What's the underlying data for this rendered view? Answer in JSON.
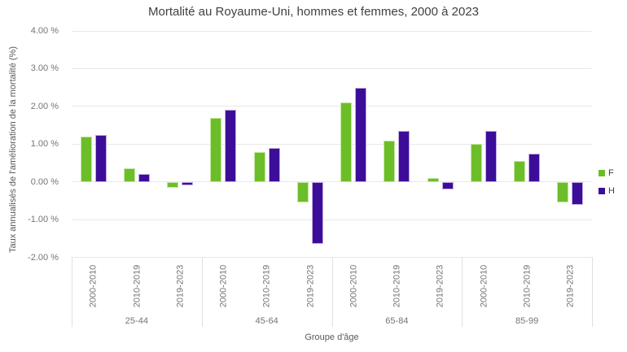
{
  "chart_data": {
    "type": "bar",
    "title": "Mortalité au Royaume-Uni, hommes et femmes, 2000 à 2023",
    "xlabel": "Groupe d'âge",
    "ylabel": "Taux annualisés de l'amélioration de la mortalité (%)",
    "ylim": [
      -2,
      4
    ],
    "grid": true,
    "legend_position": "right",
    "yticks": [
      {
        "value": 4,
        "label": "4.00 %"
      },
      {
        "value": 3,
        "label": "3.00 %"
      },
      {
        "value": 2,
        "label": "2.00 %"
      },
      {
        "value": 1,
        "label": "1.00 %"
      },
      {
        "value": 0,
        "label": "0.00 %"
      },
      {
        "value": -1,
        "label": "-1.00 %"
      },
      {
        "value": -2,
        "label": "-2.00 %"
      }
    ],
    "groups": [
      "25-44",
      "45-64",
      "65-84",
      "85-99"
    ],
    "periods": [
      "2000-2010",
      "2010-2019",
      "2019-2023"
    ],
    "series": [
      {
        "name": "F",
        "color": "#6CBE28",
        "border_color": "#C6E6A3",
        "values": [
          [
            1.2,
            0.35,
            -0.15
          ],
          [
            1.7,
            0.8,
            -0.55
          ],
          [
            2.1,
            1.1,
            0.1
          ],
          [
            1.0,
            0.55,
            -0.55
          ]
        ]
      },
      {
        "name": "H",
        "color": "#3C0D99",
        "border_color": "#C3ABE3",
        "values": [
          [
            1.25,
            0.2,
            -0.1
          ],
          [
            1.9,
            0.9,
            -1.65
          ],
          [
            2.5,
            1.35,
            -0.2
          ],
          [
            1.35,
            0.75,
            -0.6
          ]
        ]
      }
    ],
    "colors": {
      "gridline": "#e8e8e8",
      "axis_text": "#757575",
      "title_text": "#404040"
    }
  }
}
